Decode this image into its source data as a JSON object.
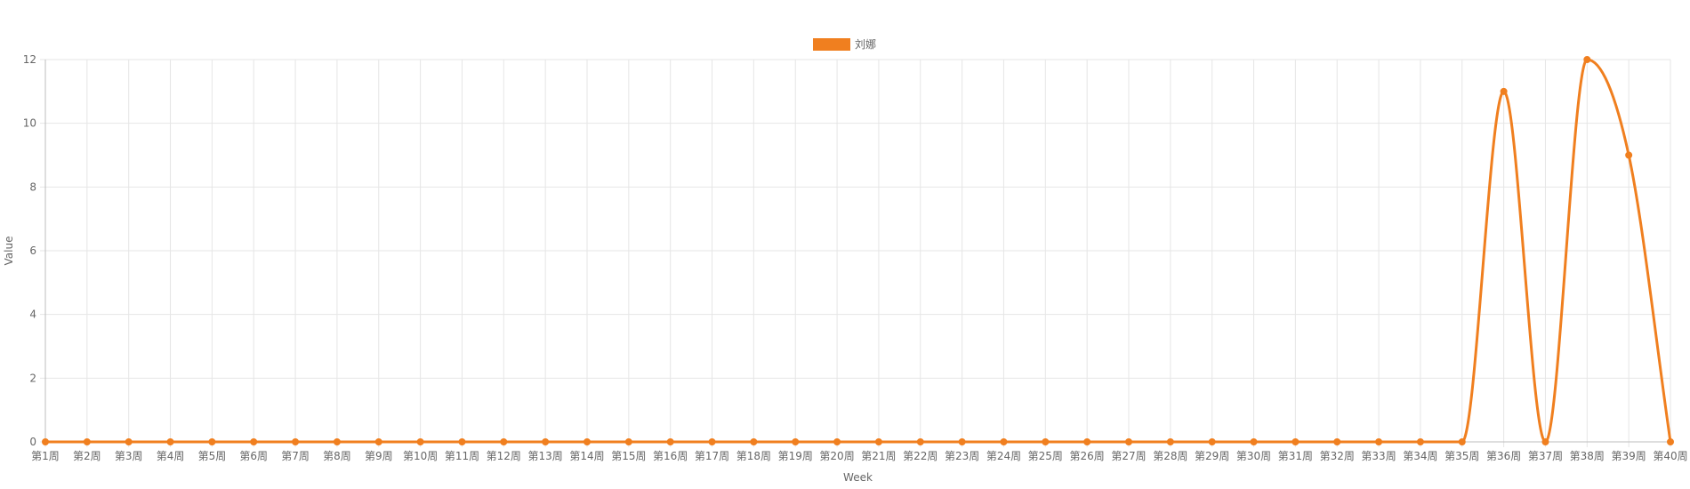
{
  "chart_data": {
    "type": "line",
    "title": "",
    "xlabel": "Week",
    "ylabel": "Value",
    "ylim": [
      0,
      12
    ],
    "yticks": [
      0,
      2,
      4,
      6,
      8,
      10,
      12
    ],
    "grid": true,
    "legend_position": "top-center",
    "categories": [
      "第1周",
      "第2周",
      "第3周",
      "第4周",
      "第5周",
      "第6周",
      "第7周",
      "第8周",
      "第9周",
      "第10周",
      "第11周",
      "第12周",
      "第13周",
      "第14周",
      "第15周",
      "第16周",
      "第17周",
      "第18周",
      "第19周",
      "第20周",
      "第21周",
      "第22周",
      "第23周",
      "第24周",
      "第25周",
      "第26周",
      "第27周",
      "第28周",
      "第29周",
      "第30周",
      "第31周",
      "第32周",
      "第33周",
      "第34周",
      "第35周",
      "第36周",
      "第37周",
      "第38周",
      "第39周",
      "第40周"
    ],
    "series": [
      {
        "name": "刘娜",
        "color": "#f07f1f",
        "values": [
          0,
          0,
          0,
          0,
          0,
          0,
          0,
          0,
          0,
          0,
          0,
          0,
          0,
          0,
          0,
          0,
          0,
          0,
          0,
          0,
          0,
          0,
          0,
          0,
          0,
          0,
          0,
          0,
          0,
          0,
          0,
          0,
          0,
          0,
          0,
          11,
          0,
          12,
          9,
          0
        ]
      }
    ]
  }
}
